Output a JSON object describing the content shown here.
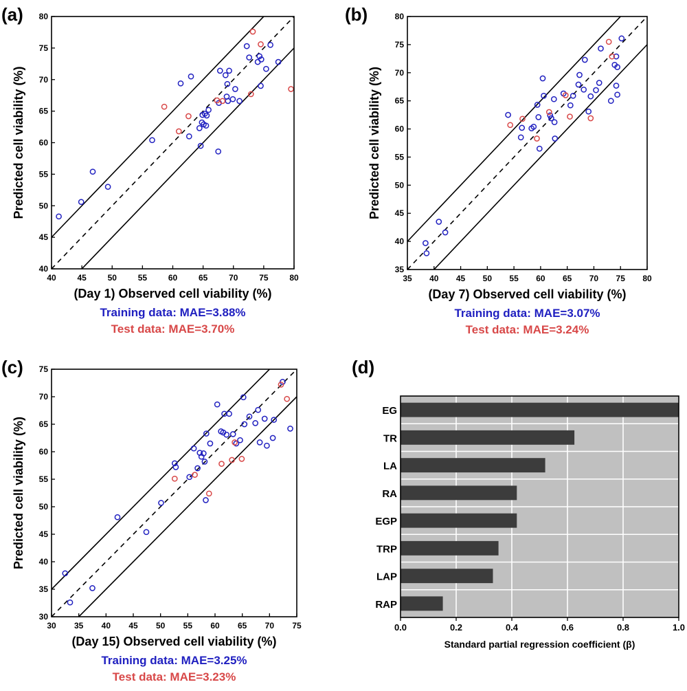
{
  "colors": {
    "training": "#2020c0",
    "test": "#d84848",
    "bar": "#3c3c3c",
    "panel_bg": "#c0c0c0"
  },
  "chart_data": [
    {
      "id": "a",
      "type": "scatter",
      "panel_label": "(a)",
      "xlabel": "(Day 1) Observed cell viability (%)",
      "ylabel": "Predicted cell viability (%)",
      "xlim": [
        40,
        80
      ],
      "ylim": [
        40,
        80
      ],
      "xticks": [
        40,
        45,
        50,
        55,
        60,
        65,
        70,
        75,
        80
      ],
      "yticks": [
        40,
        45,
        50,
        55,
        60,
        65,
        70,
        75,
        80
      ],
      "line_offset": 5,
      "mae_training": "Training data: MAE=3.88%",
      "mae_test": "Test data: MAE=3.70%",
      "series": [
        {
          "role": "training",
          "points": [
            [
              41.2,
              48.3
            ],
            [
              44.9,
              50.6
            ],
            [
              46.8,
              55.4
            ],
            [
              49.3,
              53.0
            ],
            [
              56.6,
              60.4
            ],
            [
              61.3,
              69.4
            ],
            [
              62.7,
              61.0
            ],
            [
              63.0,
              70.5
            ],
            [
              64.4,
              62.3
            ],
            [
              64.6,
              59.5
            ],
            [
              64.8,
              63.2
            ],
            [
              64.9,
              64.4
            ],
            [
              65.1,
              62.9
            ],
            [
              65.3,
              64.6
            ],
            [
              65.5,
              62.7
            ],
            [
              65.6,
              64.3
            ],
            [
              65.9,
              65.2
            ],
            [
              67.5,
              58.6
            ],
            [
              67.6,
              66.3
            ],
            [
              67.8,
              71.4
            ],
            [
              68.7,
              70.7
            ],
            [
              68.9,
              67.3
            ],
            [
              69.0,
              69.3
            ],
            [
              69.1,
              66.6
            ],
            [
              69.3,
              71.4
            ],
            [
              69.9,
              66.9
            ],
            [
              70.3,
              68.5
            ],
            [
              71.0,
              66.6
            ],
            [
              72.2,
              75.3
            ],
            [
              72.6,
              73.5
            ],
            [
              74.0,
              72.8
            ],
            [
              74.3,
              73.7
            ],
            [
              74.5,
              69.0
            ],
            [
              74.6,
              73.2
            ],
            [
              75.4,
              71.7
            ],
            [
              76.1,
              75.5
            ],
            [
              77.4,
              72.8
            ]
          ]
        },
        {
          "role": "test",
          "points": [
            [
              58.6,
              65.7
            ],
            [
              61.0,
              61.8
            ],
            [
              62.6,
              64.2
            ],
            [
              67.3,
              66.7
            ],
            [
              68.2,
              66.6
            ],
            [
              72.9,
              67.7
            ],
            [
              73.2,
              77.6
            ],
            [
              74.5,
              75.6
            ],
            [
              79.5,
              68.5
            ]
          ]
        }
      ]
    },
    {
      "id": "b",
      "type": "scatter",
      "panel_label": "(b)",
      "xlabel": "(Day 7) Observed cell viability (%)",
      "ylabel": "Predicted cell viability (%)",
      "xlim": [
        35,
        80
      ],
      "ylim": [
        35,
        80
      ],
      "xticks": [
        35,
        40,
        45,
        50,
        55,
        60,
        65,
        70,
        75,
        80
      ],
      "yticks": [
        35,
        40,
        45,
        50,
        55,
        60,
        65,
        70,
        75,
        80
      ],
      "line_offset": 5,
      "mae_training": "Training data: MAE=3.07%",
      "mae_test": "Test data: MAE=3.24%",
      "series": [
        {
          "role": "training",
          "points": [
            [
              38.4,
              39.7
            ],
            [
              38.6,
              37.9
            ],
            [
              40.9,
              43.5
            ],
            [
              42.1,
              41.6
            ],
            [
              53.9,
              62.5
            ],
            [
              56.3,
              58.5
            ],
            [
              56.5,
              60.2
            ],
            [
              58.3,
              60.1
            ],
            [
              58.7,
              60.4
            ],
            [
              59.4,
              64.3
            ],
            [
              59.6,
              62.1
            ],
            [
              59.8,
              56.5
            ],
            [
              60.4,
              69.0
            ],
            [
              60.6,
              65.9
            ],
            [
              61.8,
              62.4
            ],
            [
              62.0,
              61.9
            ],
            [
              62.5,
              65.3
            ],
            [
              62.6,
              61.2
            ],
            [
              62.7,
              58.3
            ],
            [
              64.3,
              66.3
            ],
            [
              65.6,
              64.2
            ],
            [
              66.1,
              65.9
            ],
            [
              67.1,
              67.9
            ],
            [
              67.3,
              69.6
            ],
            [
              68.1,
              67.0
            ],
            [
              68.3,
              72.3
            ],
            [
              69.0,
              63.1
            ],
            [
              69.4,
              65.8
            ],
            [
              70.4,
              66.9
            ],
            [
              71.0,
              68.2
            ],
            [
              71.3,
              74.3
            ],
            [
              73.2,
              65.0
            ],
            [
              73.9,
              71.4
            ],
            [
              74.2,
              67.7
            ],
            [
              74.2,
              72.9
            ],
            [
              74.4,
              71.0
            ],
            [
              74.4,
              66.1
            ],
            [
              75.2,
              76.1
            ]
          ]
        },
        {
          "role": "test",
          "points": [
            [
              54.3,
              60.7
            ],
            [
              56.6,
              61.8
            ],
            [
              59.3,
              58.3
            ],
            [
              61.6,
              63.0
            ],
            [
              64.7,
              66.0
            ],
            [
              65.5,
              62.2
            ],
            [
              69.4,
              61.9
            ],
            [
              72.8,
              75.5
            ],
            [
              73.4,
              72.9
            ]
          ]
        }
      ]
    },
    {
      "id": "c",
      "type": "scatter",
      "panel_label": "(c)",
      "xlabel": "(Day 15) Observed cell viability (%)",
      "ylabel": "Predicted cell viability (%)",
      "xlim": [
        30,
        75
      ],
      "ylim": [
        30,
        75
      ],
      "xticks": [
        30,
        35,
        40,
        45,
        50,
        55,
        60,
        65,
        70,
        75
      ],
      "yticks": [
        30,
        35,
        40,
        45,
        50,
        55,
        60,
        65,
        70,
        75
      ],
      "line_offset": 5,
      "mae_training": "Training data: MAE=3.25%",
      "mae_test": "Test data: MAE=3.23%",
      "series": [
        {
          "role": "training",
          "points": [
            [
              32.5,
              37.9
            ],
            [
              33.4,
              32.6
            ],
            [
              37.5,
              35.2
            ],
            [
              42.1,
              48.1
            ],
            [
              47.4,
              45.4
            ],
            [
              50.1,
              50.7
            ],
            [
              52.6,
              57.9
            ],
            [
              52.8,
              57.2
            ],
            [
              55.3,
              55.4
            ],
            [
              56.1,
              60.6
            ],
            [
              56.8,
              57.0
            ],
            [
              57.2,
              59.8
            ],
            [
              57.5,
              59.1
            ],
            [
              57.9,
              59.7
            ],
            [
              58.1,
              58.2
            ],
            [
              58.3,
              51.2
            ],
            [
              58.4,
              63.3
            ],
            [
              59.1,
              61.5
            ],
            [
              60.4,
              68.6
            ],
            [
              61.1,
              63.7
            ],
            [
              61.5,
              63.5
            ],
            [
              61.7,
              66.9
            ],
            [
              62.1,
              63.1
            ],
            [
              62.6,
              66.9
            ],
            [
              63.3,
              63.2
            ],
            [
              63.9,
              61.5
            ],
            [
              64.6,
              62.1
            ],
            [
              65.2,
              69.9
            ],
            [
              65.4,
              65.0
            ],
            [
              66.3,
              66.4
            ],
            [
              67.4,
              65.2
            ],
            [
              67.9,
              67.6
            ],
            [
              68.2,
              61.7
            ],
            [
              69.1,
              66.0
            ],
            [
              69.5,
              61.1
            ],
            [
              70.6,
              62.5
            ],
            [
              70.8,
              65.8
            ],
            [
              72.4,
              72.7
            ],
            [
              73.8,
              64.2
            ]
          ]
        },
        {
          "role": "test",
          "points": [
            [
              52.6,
              55.1
            ],
            [
              56.3,
              55.8
            ],
            [
              58.9,
              52.4
            ],
            [
              61.2,
              57.8
            ],
            [
              63.1,
              58.5
            ],
            [
              63.6,
              61.7
            ],
            [
              64.9,
              58.7
            ],
            [
              72.1,
              72.2
            ],
            [
              73.2,
              69.6
            ]
          ]
        }
      ]
    },
    {
      "id": "d",
      "type": "bar",
      "orientation": "horizontal",
      "panel_label": "(d)",
      "xlabel": "Standard partial regression coefficient (β)",
      "xlim": [
        0,
        1.0
      ],
      "xticks": [
        "0.0",
        "0.2",
        "0.4",
        "0.6",
        "0.8",
        "1.0"
      ],
      "categories": [
        "EG",
        "TR",
        "LA",
        "RA",
        "EGP",
        "TRP",
        "LAP",
        "RAP"
      ],
      "values": [
        1.0,
        0.625,
        0.52,
        0.418,
        0.418,
        0.352,
        0.332,
        0.152
      ],
      "grid": true
    }
  ]
}
